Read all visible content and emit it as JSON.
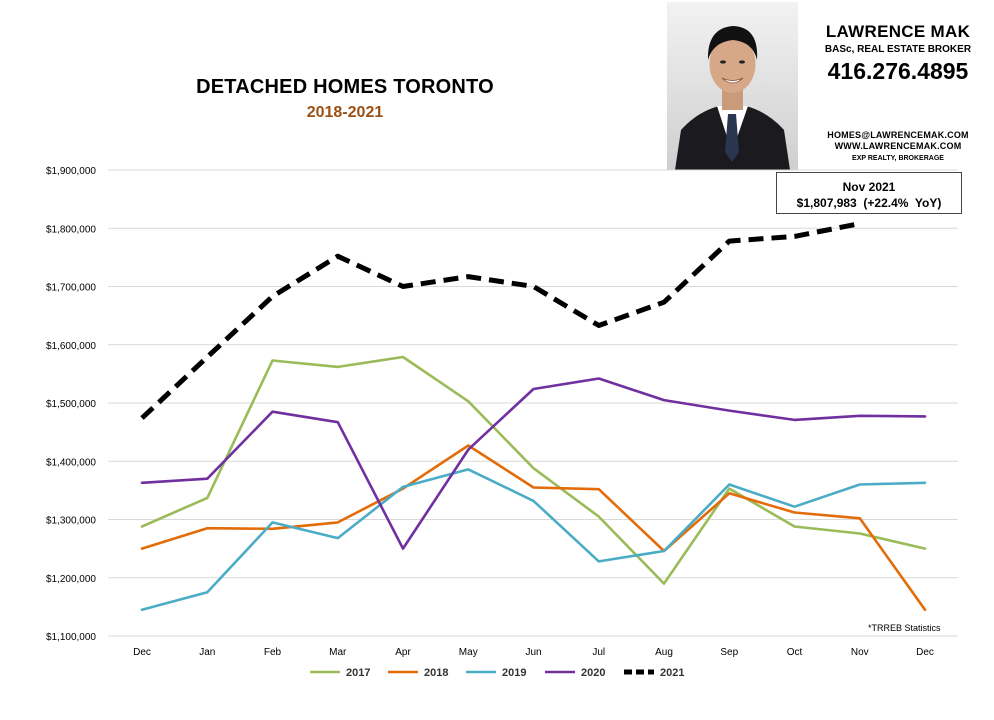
{
  "header": {
    "title": "DETACHED HOMES TORONTO",
    "subtitle": "2018-2021"
  },
  "agent": {
    "name": "LAWRENCE MAK",
    "credentials": "BASc, REAL ESTATE BROKER",
    "phone": "416.276.4895",
    "email": "HOMES@LAWRENCEMAK.COM",
    "website": "WWW.LAWRENCEMAK.COM",
    "brokerage": "EXP REALTY, BROKERAGE"
  },
  "callout": {
    "line1": "Nov 2021",
    "line2": "$1,807,983  (+22.4%  YoY)"
  },
  "source_note": "*TRREB Statistics",
  "colors": {
    "2017": "#9bbb59",
    "2018": "#e36c09",
    "2019": "#4bacc6",
    "2020": "#7030a0",
    "2021": "#000000",
    "subtitle": "#9b4f12",
    "grid": "#d9d9d9"
  },
  "chart_data": {
    "type": "line",
    "categories": [
      "Dec",
      "Jan",
      "Feb",
      "Mar",
      "Apr",
      "May",
      "Jun",
      "Jul",
      "Aug",
      "Sep",
      "Oct",
      "Nov",
      "Dec"
    ],
    "ylim": [
      1100000,
      1900000
    ],
    "y_ticks": [
      1100000,
      1200000,
      1300000,
      1400000,
      1500000,
      1600000,
      1700000,
      1800000,
      1900000
    ],
    "y_tick_labels": [
      "$1,100,000",
      "$1,200,000",
      "$1,300,000",
      "$1,400,000",
      "$1,500,000",
      "$1,600,000",
      "$1,700,000",
      "$1,800,000",
      "$1,900,000"
    ],
    "grid": "horizontal",
    "legend_position": "bottom",
    "series": [
      {
        "name": "2017",
        "style": "solid",
        "values": [
          1288000,
          1337000,
          1573000,
          1562000,
          1579000,
          1503000,
          1388000,
          1305000,
          1190000,
          1353000,
          1288000,
          1276000,
          1250000
        ]
      },
      {
        "name": "2018",
        "style": "solid",
        "values": [
          1250000,
          1285000,
          1284000,
          1295000,
          1353000,
          1427000,
          1355000,
          1352000,
          1246000,
          1345000,
          1312000,
          1302000,
          1145000
        ]
      },
      {
        "name": "2019",
        "style": "solid",
        "values": [
          1145000,
          1175000,
          1295000,
          1268000,
          1356000,
          1386000,
          1332000,
          1228000,
          1246000,
          1360000,
          1322000,
          1360000,
          1363000
        ]
      },
      {
        "name": "2020",
        "style": "solid",
        "values": [
          1363000,
          1370000,
          1485000,
          1467000,
          1250000,
          1420000,
          1524000,
          1542000,
          1505000,
          1487000,
          1471000,
          1478000,
          1477000
        ]
      },
      {
        "name": "2021",
        "style": "dashed",
        "values": [
          1474000,
          1579000,
          1683000,
          1752000,
          1700000,
          1717000,
          1700000,
          1633000,
          1673000,
          1778000,
          1786000,
          1807983,
          null
        ]
      }
    ]
  }
}
